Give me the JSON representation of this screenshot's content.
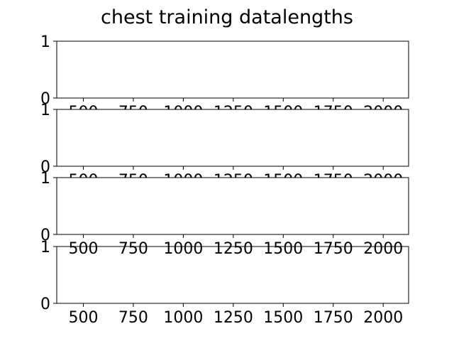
{
  "figure": {
    "title": "chest training datalengths"
  },
  "chart_data": [
    {
      "type": "line",
      "title": "",
      "xlabel": "",
      "ylabel": "",
      "xlim": [
        367,
        2127
      ],
      "ylim": [
        0,
        1
      ],
      "xticks": [
        500,
        750,
        1000,
        1250,
        1500,
        1750,
        2000
      ],
      "xtick_labels": [
        "500",
        "750",
        "1000",
        "1250",
        "1500",
        "1750",
        "2000"
      ],
      "yticks": [
        0,
        1
      ],
      "ytick_labels": [
        "0",
        "1"
      ],
      "series": [],
      "grid": false
    },
    {
      "type": "line",
      "title": "",
      "xlabel": "",
      "ylabel": "",
      "xlim": [
        367,
        2127
      ],
      "ylim": [
        0,
        1
      ],
      "xticks": [
        500,
        750,
        1000,
        1250,
        1500,
        1750,
        2000
      ],
      "xtick_labels": [
        "500",
        "750",
        "1000",
        "1250",
        "1500",
        "1750",
        "2000"
      ],
      "yticks": [
        0,
        1
      ],
      "ytick_labels": [
        "0",
        "1"
      ],
      "series": [],
      "grid": false
    },
    {
      "type": "line",
      "title": "",
      "xlabel": "",
      "ylabel": "",
      "xlim": [
        367,
        2127
      ],
      "ylim": [
        0,
        1
      ],
      "xticks": [
        500,
        750,
        1000,
        1250,
        1500,
        1750,
        2000
      ],
      "xtick_labels": [
        "500",
        "750",
        "1000",
        "1250",
        "1500",
        "1750",
        "2000"
      ],
      "yticks": [
        0,
        1
      ],
      "ytick_labels": [
        "0",
        "1"
      ],
      "series": [],
      "grid": false
    },
    {
      "type": "line",
      "title": "",
      "xlabel": "",
      "ylabel": "",
      "xlim": [
        367,
        2127
      ],
      "ylim": [
        0,
        1
      ],
      "xticks": [
        500,
        750,
        1000,
        1250,
        1500,
        1750,
        2000
      ],
      "xtick_labels": [
        "500",
        "750",
        "1000",
        "1250",
        "1500",
        "1750",
        "2000"
      ],
      "yticks": [
        0,
        1
      ],
      "ytick_labels": [
        "0",
        "1"
      ],
      "series": [],
      "grid": false
    }
  ]
}
